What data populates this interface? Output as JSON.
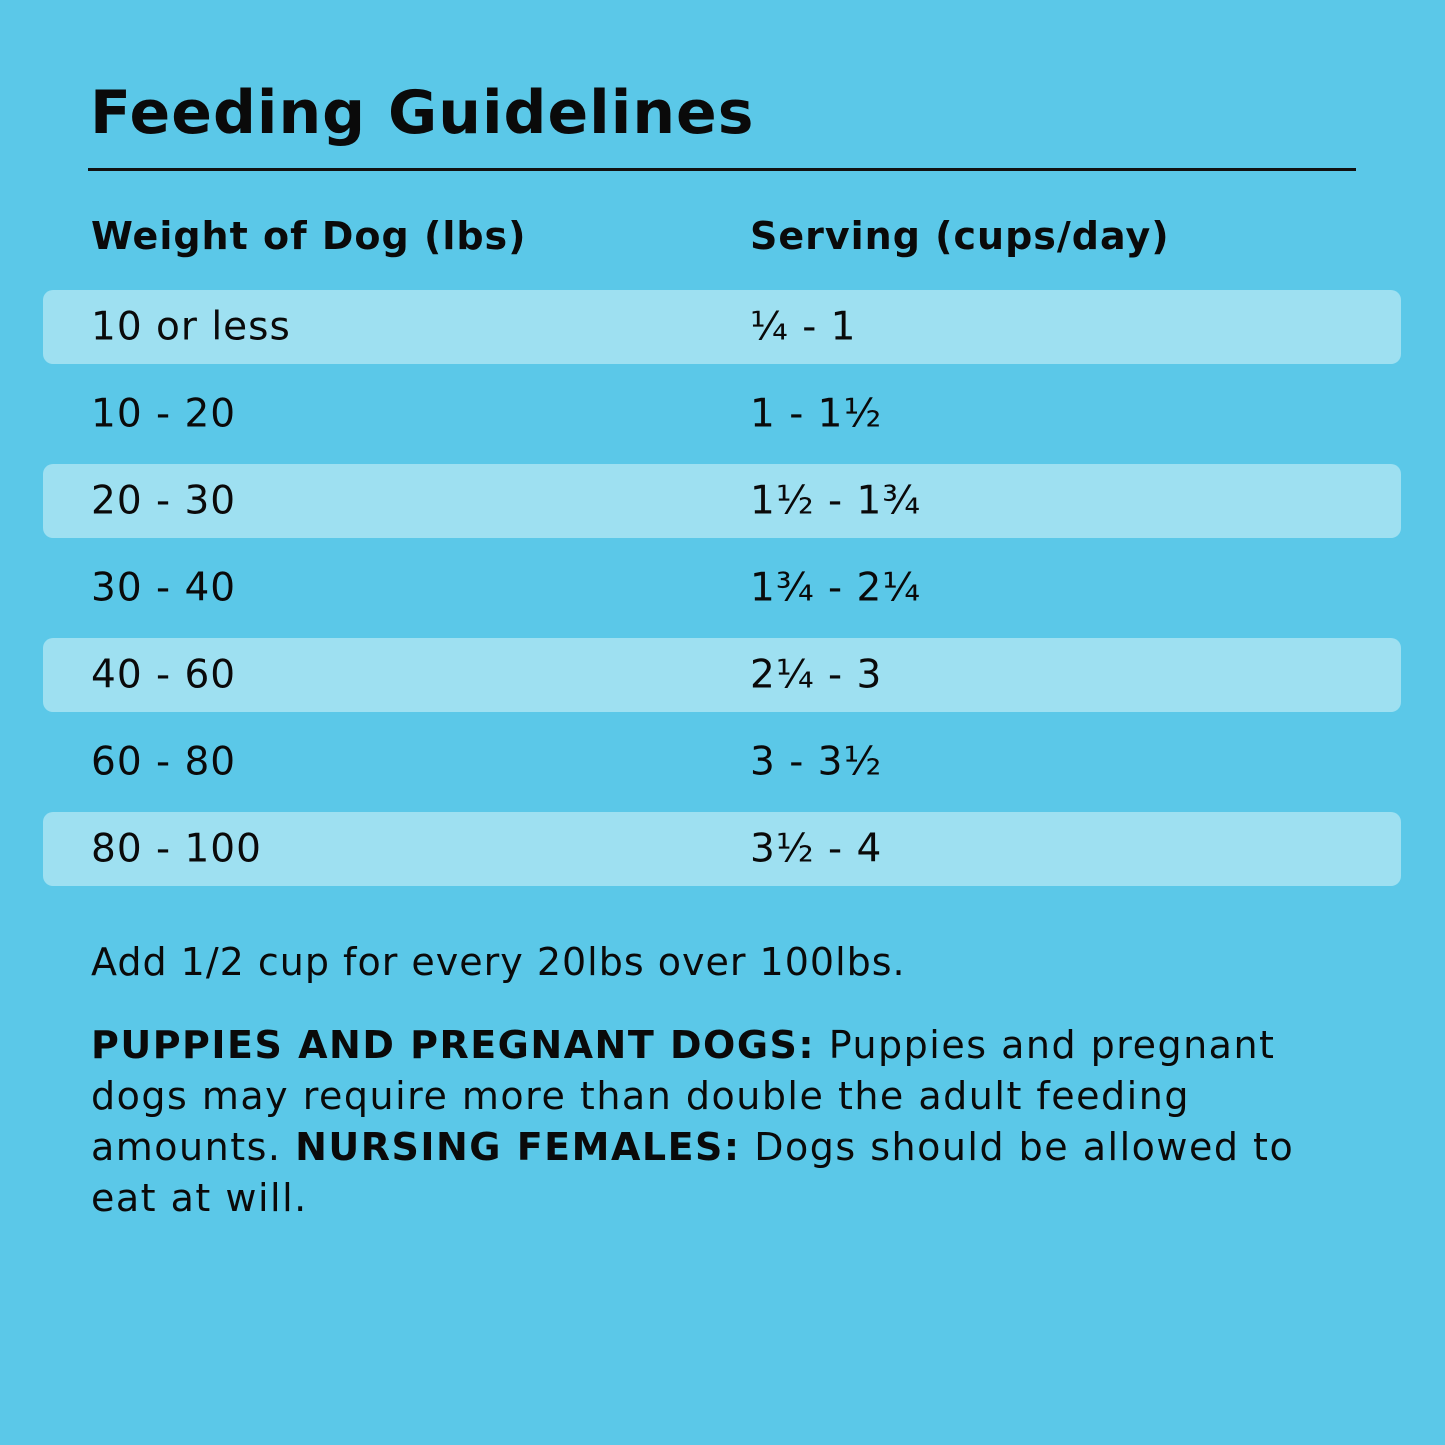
{
  "title": "Feeding Guidelines",
  "table": {
    "headers": [
      "Weight of Dog (lbs)",
      "Serving (cups/day)"
    ],
    "rows": [
      [
        "10 or less",
        "¼ - 1"
      ],
      [
        "10 - 20",
        "1 - 1½"
      ],
      [
        "20 - 30",
        "1½ - 1¾"
      ],
      [
        "30 - 40",
        "1¾ - 2¼"
      ],
      [
        "40 - 60",
        "2¼ - 3"
      ],
      [
        "60 - 80",
        "3 - 3½"
      ],
      [
        "80 - 100",
        "3½ - 4"
      ]
    ]
  },
  "note": "Add 1/2 cup for every 20lbs over 100lbs.",
  "paragraph": {
    "label1": "PUPPIES AND PREGNANT DOGS:",
    "text1": " Puppies and pregnant dogs may require more than double the adult feeding amounts. ",
    "label2": "NURSING FEMALES:",
    "text2": " Dogs should be allowed to eat at will."
  },
  "colors": {
    "background": "#5BC8E8",
    "row_highlight": "#9EE0F1",
    "text": "#0a0a0a"
  }
}
